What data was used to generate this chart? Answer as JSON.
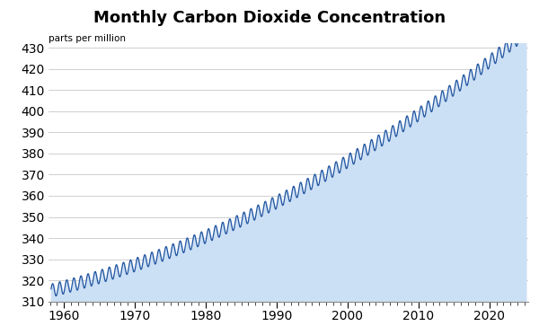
{
  "title": "Monthly Carbon Dioxide Concentration",
  "subtitle": "parts per million",
  "xlim": [
    1957.8,
    2025.5
  ],
  "ylim": [
    310,
    432
  ],
  "yticks": [
    310,
    320,
    330,
    340,
    350,
    360,
    370,
    380,
    390,
    400,
    410,
    420,
    430
  ],
  "xticks": [
    1960,
    1970,
    1980,
    1990,
    2000,
    2010,
    2020
  ],
  "line_color": "#2255a0",
  "fill_color": "#cce0f5",
  "background_color": "#ffffff",
  "grid_color": "#c8c8c8",
  "title_fontsize": 13,
  "subtitle_fontsize": 7.5,
  "tick_fontsize": 10,
  "figsize": [
    6.0,
    3.73
  ],
  "dpi": 100
}
